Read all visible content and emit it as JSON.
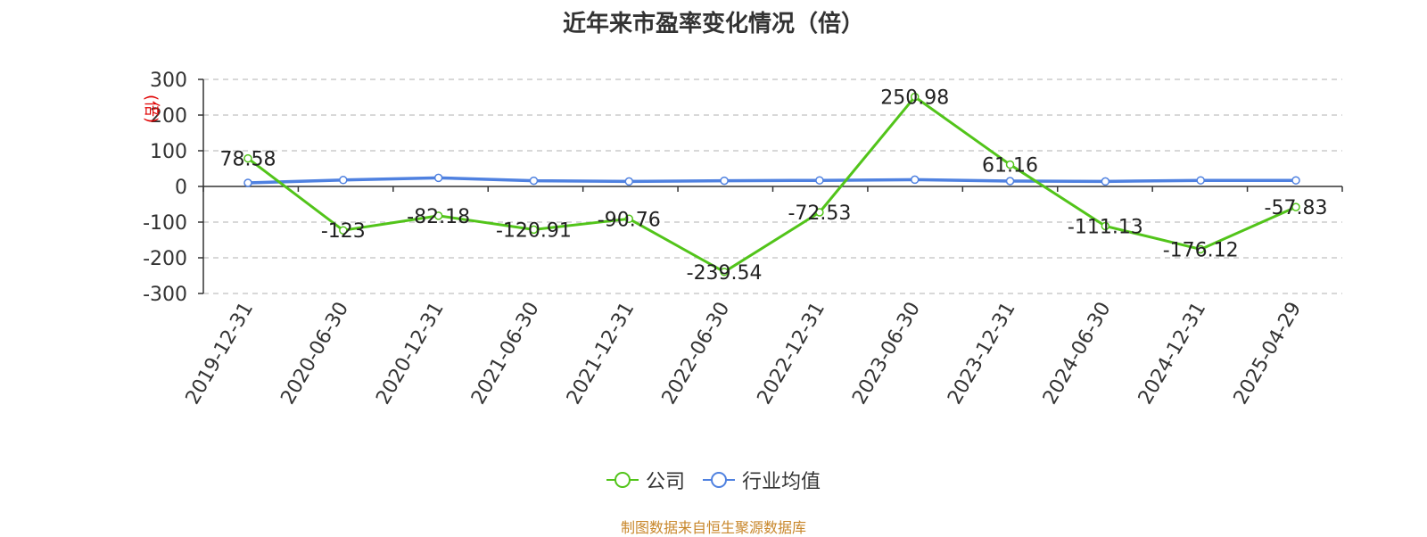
{
  "chart_data": {
    "type": "line",
    "title": "近年来市盈率变化情况（倍）",
    "ylabel": "(倍)",
    "xlabel": "",
    "ylim": [
      -300,
      300
    ],
    "yticks": [
      300,
      200,
      100,
      0,
      -100,
      -200,
      -300
    ],
    "grid": true,
    "legend_position": "bottom-center",
    "categories": [
      "2019-12-31",
      "2020-06-30",
      "2020-12-31",
      "2021-06-30",
      "2021-12-31",
      "2022-06-30",
      "2022-12-31",
      "2023-06-30",
      "2023-12-31",
      "2024-06-30",
      "2024-12-31",
      "2025-04-29"
    ],
    "series": [
      {
        "name": "公司",
        "color": "#52c41a",
        "values": [
          78.58,
          -123,
          -82.18,
          -120.91,
          -90.76,
          -239.54,
          -72.53,
          250.98,
          61.16,
          -111.13,
          -176.12,
          -57.83
        ],
        "labels": [
          "78.58",
          "-123",
          "-82.18",
          "-120.91",
          "-90.76",
          "-239.54",
          "-72.53",
          "250.98",
          "61.16",
          "-111.13",
          "-176.12",
          "-57.83"
        ]
      },
      {
        "name": "行业均值",
        "color": "#4f81e0",
        "values": [
          10,
          18,
          24,
          16,
          14,
          16,
          17,
          19,
          15,
          14,
          17,
          17
        ]
      }
    ]
  },
  "source_note": "制图数据来自恒生聚源数据库",
  "colors": {
    "axis": "#333333",
    "grid": "#cccccc",
    "ylabel": "#e00000",
    "source": "#c8872b"
  }
}
